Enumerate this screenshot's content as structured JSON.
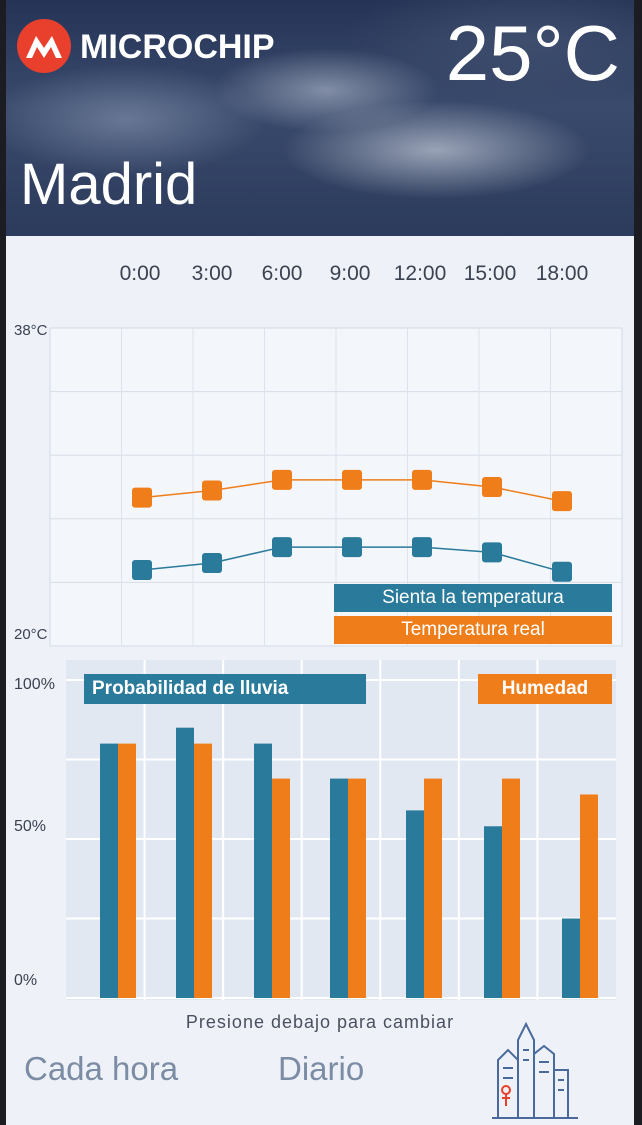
{
  "header": {
    "brand_name": "MICROCHIP",
    "temperature": "25°C",
    "city": "Madrid"
  },
  "hours": [
    "0:00",
    "3:00",
    "6:00",
    "9:00",
    "12:00",
    "15:00",
    "18:00"
  ],
  "temp_chart": {
    "y_max_label": "38°C",
    "y_min_label": "20°C",
    "legend_feel": "Sienta la temperatura",
    "legend_real": "Temperatura real"
  },
  "rain_chart": {
    "y_labels": [
      "100%",
      "50%",
      "0%"
    ],
    "legend_rain": "Probabilidad de lluvia",
    "legend_humidity": "Humedad"
  },
  "footer": {
    "hint": "Presione debajo para cambiar",
    "tab_hourly": "Cada hora",
    "tab_daily": "Diario",
    "icon": "city-skyline-icon"
  },
  "colors": {
    "feel": "#2a7a9b",
    "real": "#ef7d1a",
    "brand_red": "#e8402c"
  },
  "chart_data": [
    {
      "type": "line",
      "x": [
        "0:00",
        "3:00",
        "6:00",
        "9:00",
        "12:00",
        "15:00",
        "18:00"
      ],
      "ylim": [
        20,
        38
      ],
      "series": [
        {
          "name": "Temperatura real",
          "values": [
            28.4,
            28.8,
            29.4,
            29.4,
            29.4,
            29.0,
            28.2
          ]
        },
        {
          "name": "Sienta la temperatura",
          "values": [
            24.3,
            24.7,
            25.6,
            25.6,
            25.6,
            25.3,
            24.2
          ]
        }
      ]
    },
    {
      "type": "bar",
      "categories": [
        "0:00",
        "3:00",
        "6:00",
        "9:00",
        "12:00",
        "15:00",
        "18:00"
      ],
      "ylim": [
        0,
        100
      ],
      "series": [
        {
          "name": "Probabilidad de lluvia",
          "values": [
            80,
            85,
            80,
            69,
            59,
            54,
            25
          ]
        },
        {
          "name": "Humedad",
          "values": [
            80,
            80,
            69,
            69,
            69,
            69,
            64
          ]
        }
      ]
    }
  ]
}
